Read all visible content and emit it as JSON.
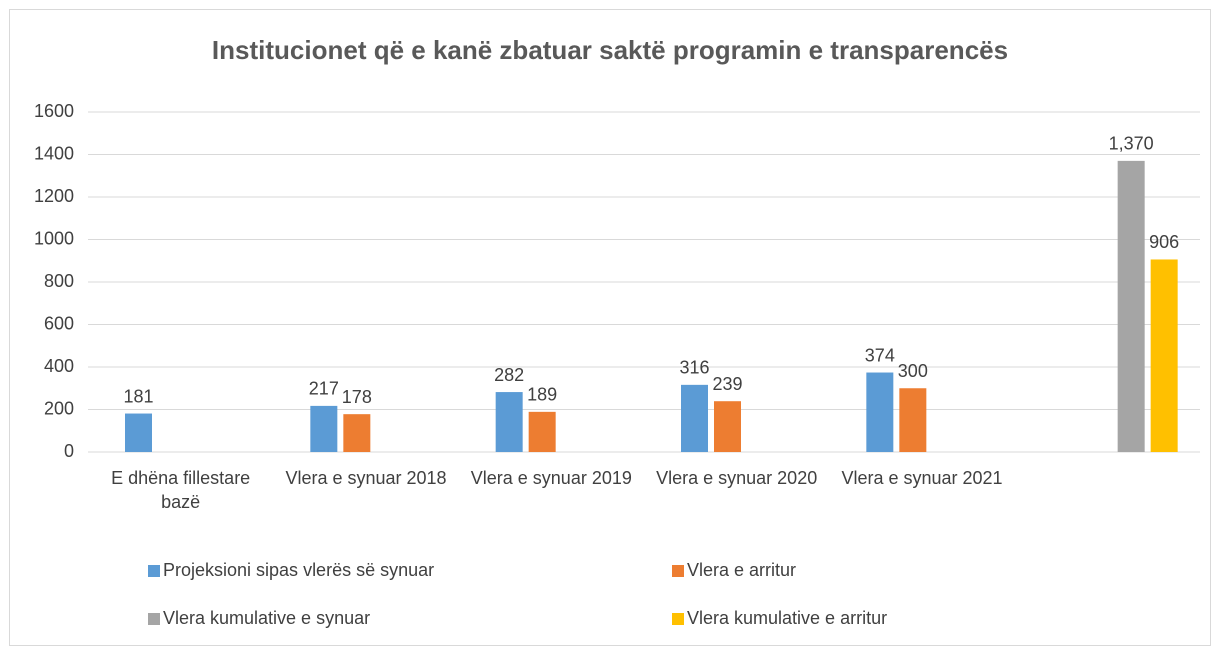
{
  "chart_data": {
    "type": "bar",
    "title": "Institucionet që e kanë zbatuar saktë programin e transparencës",
    "categories": [
      "E dhëna fillestare bazë",
      "Vlera e synuar 2018",
      "Vlera e synuar 2019",
      "Vlera e synuar 2020",
      "Vlera e synuar 2021",
      null
    ],
    "series": [
      {
        "name": "Projeksioni sipas vlerës së synuar",
        "color": "#5b9bd5",
        "values": [
          181,
          217,
          282,
          316,
          374,
          null
        ]
      },
      {
        "name": "Vlera e arritur",
        "color": "#ed7d31",
        "values": [
          null,
          178,
          189,
          239,
          300,
          null
        ]
      },
      {
        "name": "Vlera kumulative e synuar",
        "color": "#a5a5a5",
        "values": [
          null,
          null,
          null,
          null,
          null,
          1370
        ],
        "value_labels": [
          null,
          null,
          null,
          null,
          null,
          "1,370"
        ]
      },
      {
        "name": "Vlera kumulative e arritur",
        "color": "#ffc000",
        "values": [
          null,
          null,
          null,
          null,
          null,
          906
        ]
      }
    ],
    "ylim": [
      0,
      1600
    ],
    "yticks": [
      0,
      200,
      400,
      600,
      800,
      1000,
      1200,
      1400,
      1600
    ],
    "grid": true
  }
}
